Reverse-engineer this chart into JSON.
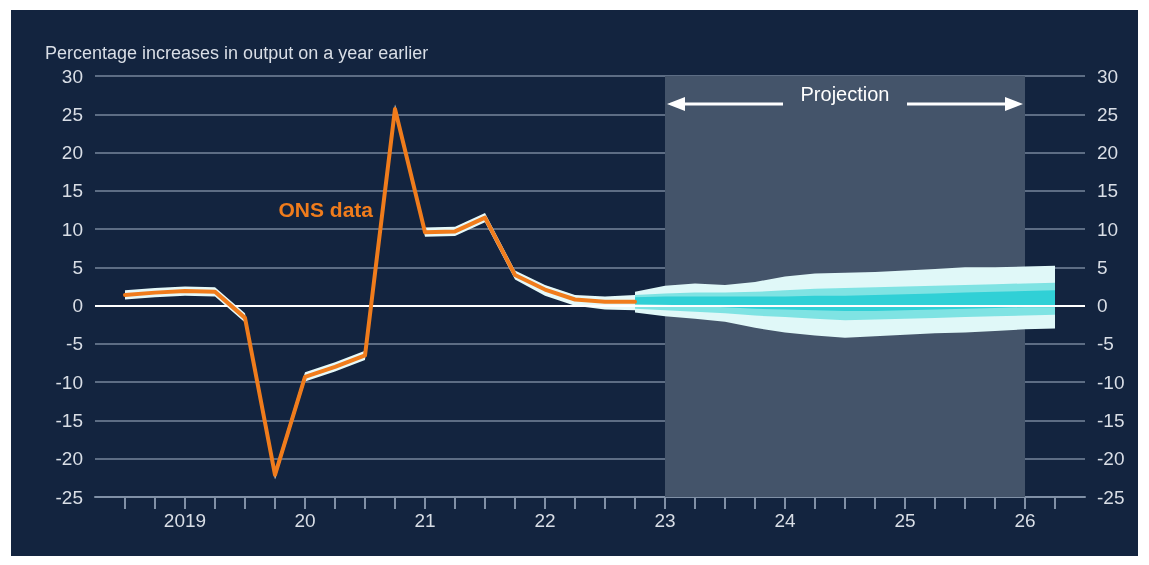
{
  "chart_data": {
    "type": "line",
    "ylabel": "Percentage increases in output on a year earlier",
    "categories": [
      null,
      null,
      null,
      "2019",
      null,
      null,
      null,
      "20",
      null,
      null,
      null,
      "21",
      null,
      null,
      null,
      "22",
      null,
      null,
      null,
      "23",
      null,
      null,
      null,
      "24",
      null,
      null,
      null,
      "25",
      null,
      null,
      null,
      "26",
      null,
      null
    ],
    "series": [
      {
        "name": "ONS data",
        "color": "#f07c1c",
        "values": [
          null,
          1.4,
          1.7,
          1.9,
          1.8,
          -1.6,
          -22.1,
          -9.3,
          -8.0,
          -6.5,
          25.7,
          9.6,
          9.7,
          11.5,
          4.0,
          2.1,
          0.8,
          0.5,
          0.5,
          null,
          null,
          null,
          null,
          null,
          null,
          null,
          null,
          null,
          null,
          null,
          null,
          null,
          null,
          null
        ],
        "lower": [
          null,
          0.8,
          1.1,
          1.3,
          1.2,
          -2.2,
          -22.7,
          -9.9,
          -8.6,
          -7.1,
          25.1,
          9.0,
          9.1,
          10.9,
          3.4,
          1.3,
          0.0,
          -0.5,
          -0.6,
          null,
          null,
          null,
          null,
          null,
          null,
          null,
          null,
          null,
          null,
          null,
          null,
          null,
          null,
          null
        ],
        "upper": [
          null,
          2.0,
          2.3,
          2.5,
          2.4,
          -1.0,
          -21.5,
          -8.7,
          -7.4,
          -5.9,
          26.3,
          10.2,
          10.3,
          12.1,
          4.6,
          2.7,
          1.4,
          1.2,
          1.4,
          null,
          null,
          null,
          null,
          null,
          null,
          null,
          null,
          null,
          null,
          null,
          null,
          null,
          null,
          null
        ]
      },
      {
        "color": "#e0f8f8",
        "values": [
          null,
          null,
          null,
          null,
          null,
          null,
          null,
          null,
          null,
          null,
          null,
          null,
          null,
          null,
          null,
          null,
          null,
          null,
          null,
          null,
          null,
          null,
          null,
          null,
          null,
          null,
          null,
          null,
          null,
          null,
          null,
          null,
          null,
          null
        ],
        "lower": [
          null,
          null,
          null,
          null,
          null,
          null,
          null,
          null,
          null,
          null,
          null,
          null,
          null,
          null,
          null,
          null,
          null,
          null,
          -0.9,
          -1.4,
          -1.7,
          -2.1,
          -2.9,
          -3.5,
          -3.9,
          -4.2,
          -4.0,
          -3.8,
          -3.6,
          -3.5,
          -3.3,
          -3.1,
          -3.0,
          null
        ],
        "upper": [
          null,
          null,
          null,
          null,
          null,
          null,
          null,
          null,
          null,
          null,
          null,
          null,
          null,
          null,
          null,
          null,
          null,
          null,
          1.8,
          2.6,
          2.9,
          2.7,
          3.1,
          3.8,
          4.2,
          4.3,
          4.4,
          4.6,
          4.8,
          5.0,
          5.0,
          5.1,
          5.2,
          null
        ]
      },
      {
        "color": "#7fe3e3",
        "values": [
          null,
          null,
          null,
          null,
          null,
          null,
          null,
          null,
          null,
          null,
          null,
          null,
          null,
          null,
          null,
          null,
          null,
          null,
          null,
          null,
          null,
          null,
          null,
          null,
          null,
          null,
          null,
          null,
          null,
          null,
          null,
          null,
          null,
          null
        ],
        "lower": [
          null,
          null,
          null,
          null,
          null,
          null,
          null,
          null,
          null,
          null,
          null,
          null,
          null,
          null,
          null,
          null,
          null,
          null,
          -0.4,
          -0.6,
          -0.8,
          -1.0,
          -1.3,
          -1.5,
          -1.7,
          -1.9,
          -1.8,
          -1.7,
          -1.6,
          -1.5,
          -1.4,
          -1.3,
          -1.2,
          null
        ],
        "upper": [
          null,
          null,
          null,
          null,
          null,
          null,
          null,
          null,
          null,
          null,
          null,
          null,
          null,
          null,
          null,
          null,
          null,
          null,
          1.4,
          1.6,
          1.7,
          1.7,
          1.8,
          2.0,
          2.2,
          2.3,
          2.4,
          2.5,
          2.6,
          2.7,
          2.8,
          2.9,
          3.0,
          null
        ]
      },
      {
        "color": "#30d0d6",
        "values": [
          null,
          null,
          null,
          null,
          null,
          null,
          null,
          null,
          null,
          null,
          null,
          null,
          null,
          null,
          null,
          null,
          null,
          null,
          null,
          null,
          null,
          null,
          null,
          null,
          null,
          null,
          null,
          null,
          null,
          null,
          null,
          null,
          null,
          null
        ],
        "lower": [
          null,
          null,
          null,
          null,
          null,
          null,
          null,
          null,
          null,
          null,
          null,
          null,
          null,
          null,
          null,
          null,
          null,
          null,
          0.2,
          0.1,
          0.0,
          -0.2,
          -0.4,
          -0.5,
          -0.6,
          -0.7,
          -0.7,
          -0.6,
          -0.5,
          -0.4,
          -0.3,
          -0.2,
          -0.2,
          null
        ],
        "upper": [
          null,
          null,
          null,
          null,
          null,
          null,
          null,
          null,
          null,
          null,
          null,
          null,
          null,
          null,
          null,
          null,
          null,
          null,
          1.1,
          1.2,
          1.2,
          1.2,
          1.2,
          1.2,
          1.3,
          1.3,
          1.4,
          1.5,
          1.6,
          1.7,
          1.8,
          1.9,
          2.0,
          null
        ]
      }
    ],
    "ylim": [
      -25,
      30
    ],
    "yticks": [
      -25,
      -20,
      -15,
      -10,
      -5,
      0,
      5,
      10,
      15,
      20,
      25,
      30
    ],
    "y2lim": [
      -25,
      30
    ],
    "y2ticks": [
      -25,
      -20,
      -15,
      -10,
      -5,
      0,
      5,
      10,
      15,
      20,
      25,
      30
    ],
    "ref_lines": [
      {
        "axis": "y",
        "value": 0,
        "color": "#ffffff"
      }
    ],
    "bands": [
      {
        "axis": "x",
        "from": "23",
        "to": "26",
        "label": "Projection",
        "color": "#44546a"
      }
    ],
    "grid": "y",
    "marker": "none",
    "line_style": "solid",
    "legend": false
  }
}
